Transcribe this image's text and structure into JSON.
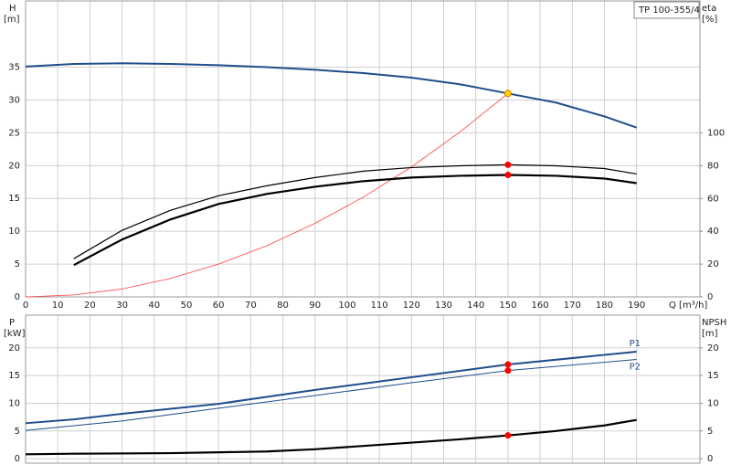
{
  "chart_data": [
    {
      "type": "line",
      "title": "TP 100-355/4",
      "xlabel": "Q [m³/h]",
      "ylabel": "H",
      "yunit": "[m]",
      "y2label": "eta",
      "y2unit": "[%]",
      "xlim": [
        0,
        209.7
      ],
      "xticks": [
        0,
        10,
        20,
        30,
        40,
        50,
        60,
        70,
        80,
        90,
        100,
        110,
        120,
        130,
        140,
        150,
        160,
        170,
        180,
        190
      ],
      "ylim": [
        0,
        45.1
      ],
      "yticks": [
        0,
        5,
        10,
        15,
        20,
        25,
        30,
        35
      ],
      "y2lim": [
        0,
        180.6
      ],
      "y2ticks": [
        0,
        20,
        40,
        60,
        80,
        100
      ],
      "grid": true,
      "series": [
        {
          "color": "#1f4e8c",
          "width": 2,
          "x": [
            0,
            15,
            30,
            45,
            60,
            75,
            90,
            105,
            120,
            135,
            150,
            165,
            180,
            190
          ],
          "values": [
            35.1,
            35.5,
            35.6,
            35.5,
            35.3,
            35.0,
            34.6,
            34.1,
            33.4,
            32.4,
            31.0,
            29.6,
            27.5,
            25.8
          ]
        },
        {
          "color": "#ff4040",
          "width": 0.8,
          "x": [
            0,
            15,
            30,
            45,
            60,
            75,
            90,
            105,
            120,
            135,
            150
          ],
          "values": [
            0,
            0.3,
            1.2,
            2.8,
            5.0,
            7.8,
            11.2,
            15.2,
            19.8,
            25.1,
            31.0
          ]
        },
        {
          "color": "#000000",
          "width": 1.2,
          "axis": "y2",
          "x": [
            15,
            30,
            45,
            60,
            75,
            90,
            105,
            120,
            135,
            150,
            165,
            180,
            190
          ],
          "values": [
            23.3,
            40.6,
            52.8,
            61.7,
            67.8,
            72.8,
            76.7,
            78.9,
            80,
            80.6,
            80,
            78.3,
            75
          ]
        },
        {
          "color": "#000000",
          "width": 2.2,
          "axis": "y2",
          "x": [
            15,
            30,
            45,
            60,
            75,
            90,
            105,
            120,
            135,
            150,
            165,
            180,
            190
          ],
          "values": [
            19.4,
            35,
            47.2,
            56.7,
            62.8,
            67.2,
            70.6,
            72.8,
            73.9,
            74.4,
            73.9,
            72.2,
            69.4
          ]
        },
        {
          "style": "points",
          "color": "#ffd700",
          "x": [
            150
          ],
          "values": [
            31.0
          ]
        },
        {
          "style": "points",
          "color": "#ff0000",
          "axis": "y2",
          "x": [
            150,
            150
          ],
          "values": [
            80.6,
            74.4
          ]
        }
      ]
    },
    {
      "type": "line",
      "ylabel": "P",
      "yunit": "[kW]",
      "y2label": "NPSH",
      "y2unit": "[m]",
      "xlim": [
        0,
        209.7
      ],
      "xticks": [
        0,
        10,
        20,
        30,
        40,
        50,
        60,
        70,
        80,
        90,
        100,
        110,
        120,
        130,
        140,
        150,
        160,
        170,
        180,
        190
      ],
      "xtick_labels": false,
      "ylim": [
        -0.8,
        25.9
      ],
      "yticks": [
        0,
        5,
        10,
        15,
        20
      ],
      "y2lim": [
        -0.8,
        25.9
      ],
      "y2ticks": [
        0,
        5,
        10,
        15,
        20
      ],
      "grid": true,
      "series": [
        {
          "label": "P1",
          "color": "#1f4e8c",
          "width": 2,
          "x": [
            0,
            15,
            30,
            60,
            90,
            120,
            150,
            190
          ],
          "values": [
            6.4,
            7.1,
            8.1,
            9.9,
            12.4,
            14.7,
            17.0,
            19.3
          ]
        },
        {
          "label": "P2",
          "color": "#1f4e8c",
          "width": 1,
          "x": [
            0,
            30,
            60,
            90,
            120,
            150,
            190
          ],
          "values": [
            5.1,
            6.8,
            9.1,
            11.4,
            13.7,
            15.9,
            17.9
          ]
        },
        {
          "color": "#000000",
          "width": 2.2,
          "axis": "y2",
          "x": [
            0,
            15,
            45,
            75,
            90,
            105,
            120,
            135,
            150,
            165,
            180,
            190
          ],
          "values": [
            0.8,
            0.9,
            1.0,
            1.3,
            1.7,
            2.3,
            2.9,
            3.5,
            4.2,
            5.0,
            6.0,
            7.0
          ]
        },
        {
          "style": "points",
          "color": "#ff0000",
          "x": [
            150,
            150
          ],
          "values": [
            17.0,
            15.9
          ]
        },
        {
          "style": "points",
          "color": "#ff0000",
          "axis": "y2",
          "x": [
            150
          ],
          "values": [
            4.2
          ]
        }
      ]
    }
  ]
}
